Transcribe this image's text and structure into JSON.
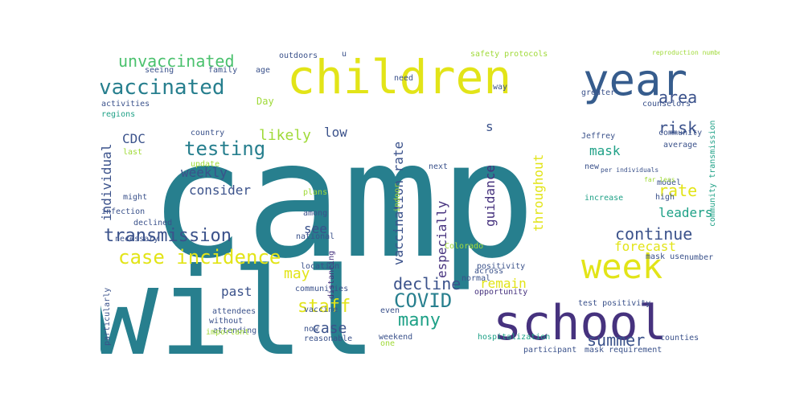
{
  "palette": {
    "yellow": "#e2e418",
    "dark_purple": "#46327e",
    "navy": "#3b528b",
    "blue": "#365c8d",
    "teal": "#277f8e",
    "aqua": "#1fa187",
    "green": "#4ac16d",
    "lime": "#a0da39"
  },
  "words": [
    {
      "text": "camp",
      "color": "teal"
    },
    {
      "text": "will",
      "color": "teal"
    },
    {
      "text": "children",
      "color": "yellow"
    },
    {
      "text": "year",
      "color": "blue"
    },
    {
      "text": "week",
      "color": "yellow"
    },
    {
      "text": "school",
      "color": "dark_purple"
    },
    {
      "text": "vaccinated",
      "color": "teal"
    },
    {
      "text": "unvaccinated",
      "color": "green"
    },
    {
      "text": "testing",
      "color": "teal"
    },
    {
      "text": "case incidence",
      "color": "yellow"
    },
    {
      "text": "transmission",
      "color": "navy"
    },
    {
      "text": "COVID",
      "color": "teal"
    },
    {
      "text": "staff",
      "color": "yellow"
    },
    {
      "text": "many",
      "color": "aqua"
    },
    {
      "text": "decline",
      "color": "navy"
    },
    {
      "text": "summer",
      "color": "navy"
    },
    {
      "text": "continue",
      "color": "navy"
    },
    {
      "text": "rate",
      "color": "yellow"
    },
    {
      "text": "risk",
      "color": "navy"
    },
    {
      "text": "area",
      "color": "navy"
    },
    {
      "text": "mask",
      "color": "aqua"
    },
    {
      "text": "leaders",
      "color": "aqua"
    },
    {
      "text": "forecast",
      "color": "yellow"
    },
    {
      "text": "throughout",
      "color": "yellow"
    },
    {
      "text": "vaccination rate",
      "color": "navy"
    },
    {
      "text": "especially",
      "color": "dark_purple"
    },
    {
      "text": "guidance",
      "color": "dark_purple"
    },
    {
      "text": "remain",
      "color": "yellow"
    },
    {
      "text": "may",
      "color": "yellow"
    },
    {
      "text": "see",
      "color": "navy"
    },
    {
      "text": "case",
      "color": "navy"
    },
    {
      "text": "past",
      "color": "navy"
    },
    {
      "text": "likely",
      "color": "lime"
    },
    {
      "text": "low",
      "color": "navy"
    },
    {
      "text": "weekly",
      "color": "navy"
    },
    {
      "text": "consider",
      "color": "navy"
    },
    {
      "text": "individual",
      "color": "navy"
    },
    {
      "text": "CDC",
      "color": "navy"
    },
    {
      "text": "s",
      "color": "navy"
    },
    {
      "text": "Day",
      "color": "lime"
    },
    {
      "text": "age",
      "color": "navy"
    },
    {
      "text": "family",
      "color": "navy"
    },
    {
      "text": "seeing",
      "color": "navy"
    },
    {
      "text": "outdoors",
      "color": "navy"
    },
    {
      "text": "u",
      "color": "navy"
    },
    {
      "text": "need",
      "color": "navy"
    },
    {
      "text": "safety protocols",
      "color": "lime"
    },
    {
      "text": "way",
      "color": "navy"
    },
    {
      "text": "greater",
      "color": "navy"
    },
    {
      "text": "counselors",
      "color": "navy"
    },
    {
      "text": "community",
      "color": "navy"
    },
    {
      "text": "community transmission",
      "color": "aqua"
    },
    {
      "text": "average",
      "color": "navy"
    },
    {
      "text": "Jeffrey",
      "color": "navy"
    },
    {
      "text": "new",
      "color": "navy"
    },
    {
      "text": "increase",
      "color": "aqua"
    },
    {
      "text": "model",
      "color": "navy"
    },
    {
      "text": "high",
      "color": "navy"
    },
    {
      "text": "mask use",
      "color": "navy"
    },
    {
      "text": "number",
      "color": "navy"
    },
    {
      "text": "activities",
      "color": "navy"
    },
    {
      "text": "regions",
      "color": "aqua"
    },
    {
      "text": "infection",
      "color": "navy"
    },
    {
      "text": "country",
      "color": "navy"
    },
    {
      "text": "update",
      "color": "lime"
    },
    {
      "text": "last",
      "color": "lime"
    },
    {
      "text": "might",
      "color": "navy"
    },
    {
      "text": "declined",
      "color": "navy"
    },
    {
      "text": "necessary",
      "color": "navy"
    },
    {
      "text": "next",
      "color": "navy"
    },
    {
      "text": "plans",
      "color": "lime"
    },
    {
      "text": "indoor",
      "color": "lime"
    },
    {
      "text": "among",
      "color": "navy"
    },
    {
      "text": "national",
      "color": "navy"
    },
    {
      "text": "location",
      "color": "navy"
    },
    {
      "text": "communities",
      "color": "navy"
    },
    {
      "text": "vaccine",
      "color": "navy"
    },
    {
      "text": "now",
      "color": "navy"
    },
    {
      "text": "reasonable",
      "color": "navy"
    },
    {
      "text": "distancing",
      "color": "dark_purple"
    },
    {
      "text": "Colorado",
      "color": "lime"
    },
    {
      "text": "positivity",
      "color": "navy"
    },
    {
      "text": "normal",
      "color": "navy"
    },
    {
      "text": "even",
      "color": "navy"
    },
    {
      "text": "one",
      "color": "lime"
    },
    {
      "text": "weekend",
      "color": "navy"
    },
    {
      "text": "across",
      "color": "navy"
    },
    {
      "text": "opportunity",
      "color": "dark_purple"
    },
    {
      "text": "hospitalization",
      "color": "aqua"
    },
    {
      "text": "participant",
      "color": "navy"
    },
    {
      "text": "test positivity",
      "color": "navy"
    },
    {
      "text": "mask requirement",
      "color": "navy"
    },
    {
      "text": "counties",
      "color": "navy"
    },
    {
      "text": "attendees",
      "color": "navy"
    },
    {
      "text": "without",
      "color": "navy"
    },
    {
      "text": "attending",
      "color": "navy"
    },
    {
      "text": "important",
      "color": "lime"
    },
    {
      "text": "particularly",
      "color": "navy"
    },
    {
      "text": "reproduction number",
      "color": "lime"
    },
    {
      "text": "far less",
      "color": "lime"
    },
    {
      "text": "per individuals",
      "color": "navy"
    }
  ]
}
